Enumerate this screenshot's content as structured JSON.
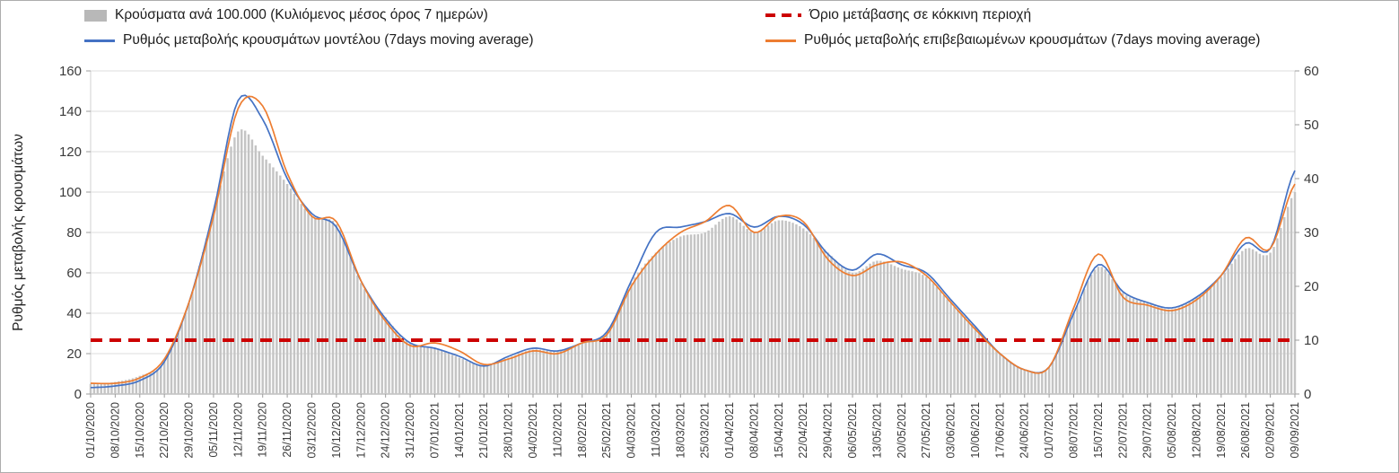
{
  "frame": {
    "background": "#ffffff",
    "border_color": "#adadad"
  },
  "legend": {
    "items": [
      {
        "key": "cases-bars",
        "label": "Κρούσματα ανά 100.000 (Κυλιόμενος μέσος όρος 7 ημερών)",
        "color": "#b8b8b8",
        "marker": "bar"
      },
      {
        "key": "red-threshold",
        "label": "Όριο μετάβασης σε κόκκινη περιοχή",
        "color": "#cc0000",
        "marker": "dash"
      },
      {
        "key": "model-rate",
        "label": "Ρυθμός μεταβολής κρουσμάτων μοντέλου (7days moving average)",
        "color": "#4472c4",
        "marker": "line"
      },
      {
        "key": "confirmed-rate",
        "label": "Ρυθμός μεταβολής επιβεβαιωμένων κρουσμάτων (7days moving average)",
        "color": "#ed7d31",
        "marker": "line"
      }
    ]
  },
  "chart_data": {
    "type": "bar",
    "subtype": "combo-bar-and-lines-dual-axis",
    "title": "",
    "ylabel_left": "Ρυθμός μεταβολής κρουσμάτων",
    "y_left": {
      "min": 0,
      "max": 160,
      "step": 20
    },
    "y_right": {
      "min": 0,
      "max": 60,
      "step": 10
    },
    "y_left_ticks": [
      0,
      20,
      40,
      60,
      80,
      100,
      120,
      140,
      160
    ],
    "y_right_ticks": [
      0,
      10,
      20,
      30,
      40,
      50,
      60
    ],
    "grid": "horizontal",
    "legend_position": "top",
    "sampling_note": "weekly anchor estimates read from plot; bars are daily values between anchors",
    "x_tick_labels": [
      "01/10/2020",
      "08/10/2020",
      "15/10/2020",
      "22/10/2020",
      "29/10/2020",
      "05/11/2020",
      "12/11/2020",
      "19/11/2020",
      "26/11/2020",
      "03/12/2020",
      "10/12/2020",
      "17/12/2020",
      "24/12/2020",
      "31/12/2020",
      "07/01/2021",
      "14/01/2021",
      "21/01/2021",
      "28/01/2021",
      "04/02/2021",
      "11/02/2021",
      "18/02/2021",
      "25/02/2021",
      "04/03/2021",
      "11/03/2021",
      "18/03/2021",
      "25/03/2021",
      "01/04/2021",
      "08/04/2021",
      "15/04/2021",
      "22/04/2021",
      "29/04/2021",
      "06/05/2021",
      "13/05/2021",
      "20/05/2021",
      "27/05/2021",
      "03/06/2021",
      "10/06/2021",
      "17/06/2021",
      "24/06/2021",
      "01/07/2021",
      "08/07/2021",
      "15/07/2021",
      "22/07/2021",
      "29/07/2021",
      "05/08/2021",
      "12/08/2021",
      "19/08/2021",
      "26/08/2021",
      "02/09/2021",
      "09/09/2021"
    ],
    "series": [
      {
        "name": "Κρούσματα ανά 100.000 (Κυλιόμενος μέσος όρος 7 ημερών)",
        "type": "bar",
        "axis": "left",
        "color": "#c4c4c4",
        "values": [
          5,
          6,
          9,
          16,
          45,
          90,
          130,
          118,
          104,
          88,
          84,
          55,
          38,
          25,
          23,
          18,
          14,
          18,
          22,
          21,
          25,
          30,
          55,
          70,
          78,
          80,
          88,
          80,
          86,
          82,
          70,
          60,
          66,
          62,
          58,
          45,
          33,
          20,
          12,
          13,
          40,
          63,
          50,
          45,
          42,
          48,
          58,
          72,
          70,
          100
        ]
      },
      {
        "name": "Ρυθμός μεταβολής κρουσμάτων μοντέλου (7days moving average)",
        "type": "line",
        "axis": "right",
        "color": "#4472c4",
        "values": [
          1.2,
          1.5,
          2.5,
          6,
          17,
          34,
          54.5,
          51,
          40,
          33.5,
          31,
          21,
          14,
          9.5,
          8.5,
          7,
          5.2,
          7,
          8.5,
          8,
          9.5,
          11.5,
          21,
          30,
          31,
          32,
          33.5,
          31,
          33,
          31.5,
          26,
          23,
          26,
          24,
          22.5,
          17.5,
          12.5,
          7.5,
          4.5,
          5,
          15,
          24,
          19,
          17,
          16,
          18,
          22,
          28,
          27,
          41.5
        ]
      },
      {
        "name": "Ρυθμός μεταβολής επιβεβαιωμένων κρουσμάτων (7days moving average)",
        "type": "line",
        "axis": "right",
        "color": "#ed7d31",
        "values": [
          2,
          2,
          3,
          6.5,
          17,
          33,
          53,
          53.5,
          41,
          33,
          32,
          21,
          13.5,
          9,
          9.5,
          8,
          5.5,
          6.5,
          8,
          7.5,
          9.5,
          11,
          20,
          26,
          30,
          32,
          35,
          30,
          33,
          32,
          25,
          22,
          24,
          24.5,
          22,
          17,
          12,
          7.5,
          4.5,
          5,
          16,
          26,
          18,
          16.5,
          15.5,
          17.5,
          22,
          29,
          27,
          39
        ]
      },
      {
        "name": "Όριο μετάβασης σε κόκκινη περιοχή",
        "type": "threshold-line",
        "axis": "right",
        "color": "#cc0000",
        "value": 10
      }
    ]
  }
}
